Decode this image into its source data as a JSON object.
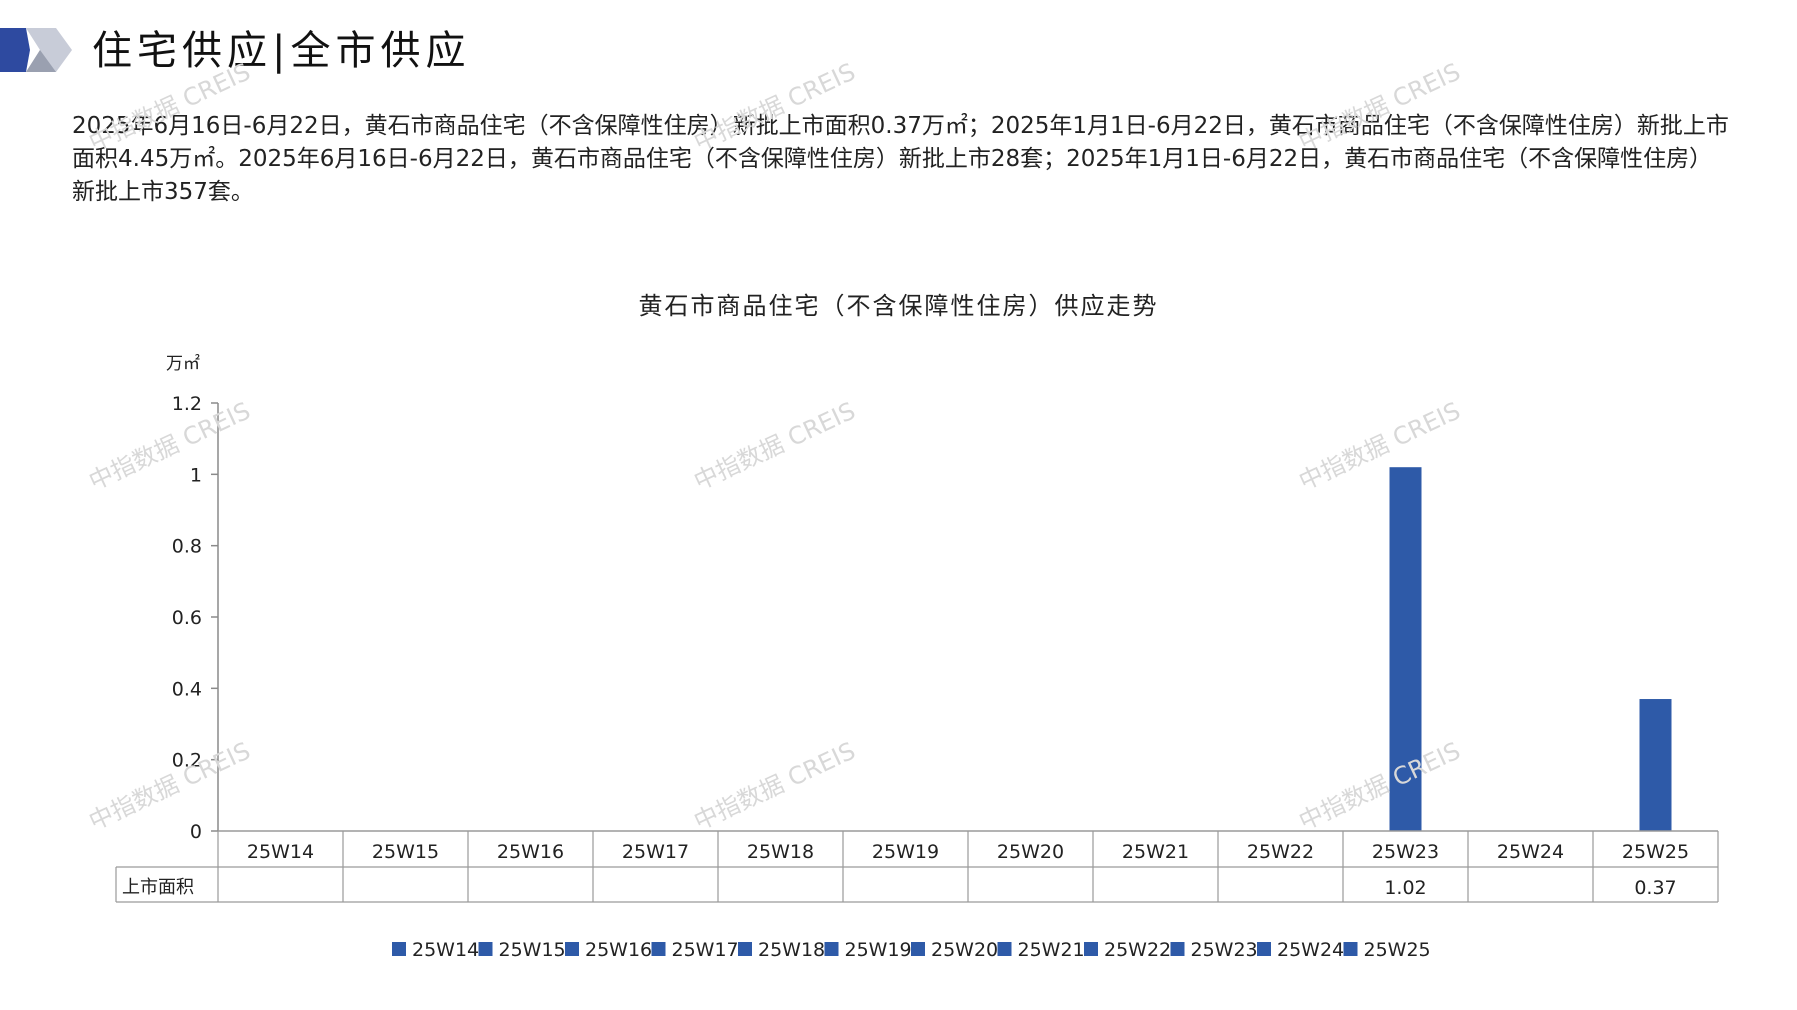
{
  "header": {
    "title": "住宅供应|全市供应"
  },
  "summary": "2025年6月16日-6月22日，黄石市商品住宅（不含保障性住房）新批上市面积0.37万㎡；2025年1月1日-6月22日，黄石市商品住宅（不含保障性住房）新批上市面积4.45万㎡。2025年6月16日-6月22日，黄石市商品住宅（不含保障性住房）新批上市28套；2025年1月1日-6月22日，黄石市商品住宅（不含保障性住房）新批上市357套。",
  "watermark": "中指数据 CREIS",
  "colors": {
    "bar": "#2e5aa8",
    "logo_dark": "#2e4aa0",
    "logo_light": "#c8ccd8"
  },
  "chart_data": {
    "type": "bar",
    "title": "黄石市商品住宅（不含保障性住房）供应走势",
    "ylabel": "万㎡",
    "ylim": [
      0,
      1.2
    ],
    "yticks": [
      "0",
      "0.2",
      "0.4",
      "0.6",
      "0.8",
      "1",
      "1.2"
    ],
    "categories": [
      "25W14",
      "25W15",
      "25W16",
      "25W17",
      "25W18",
      "25W19",
      "25W20",
      "25W21",
      "25W22",
      "25W23",
      "25W24",
      "25W25"
    ],
    "series": [
      {
        "name": "上市面积",
        "values": [
          null,
          null,
          null,
          null,
          null,
          null,
          null,
          null,
          null,
          1.02,
          null,
          0.37
        ],
        "labels": [
          "",
          "",
          "",
          "",
          "",
          "",
          "",
          "",
          "",
          "1.02",
          "",
          "0.37"
        ]
      }
    ],
    "legend": [
      "25W14",
      "25W15",
      "25W16",
      "25W17",
      "25W18",
      "25W19",
      "25W20",
      "25W21",
      "25W22",
      "25W23",
      "25W24",
      "25W25"
    ],
    "legend_position": "bottom",
    "grid": false
  }
}
